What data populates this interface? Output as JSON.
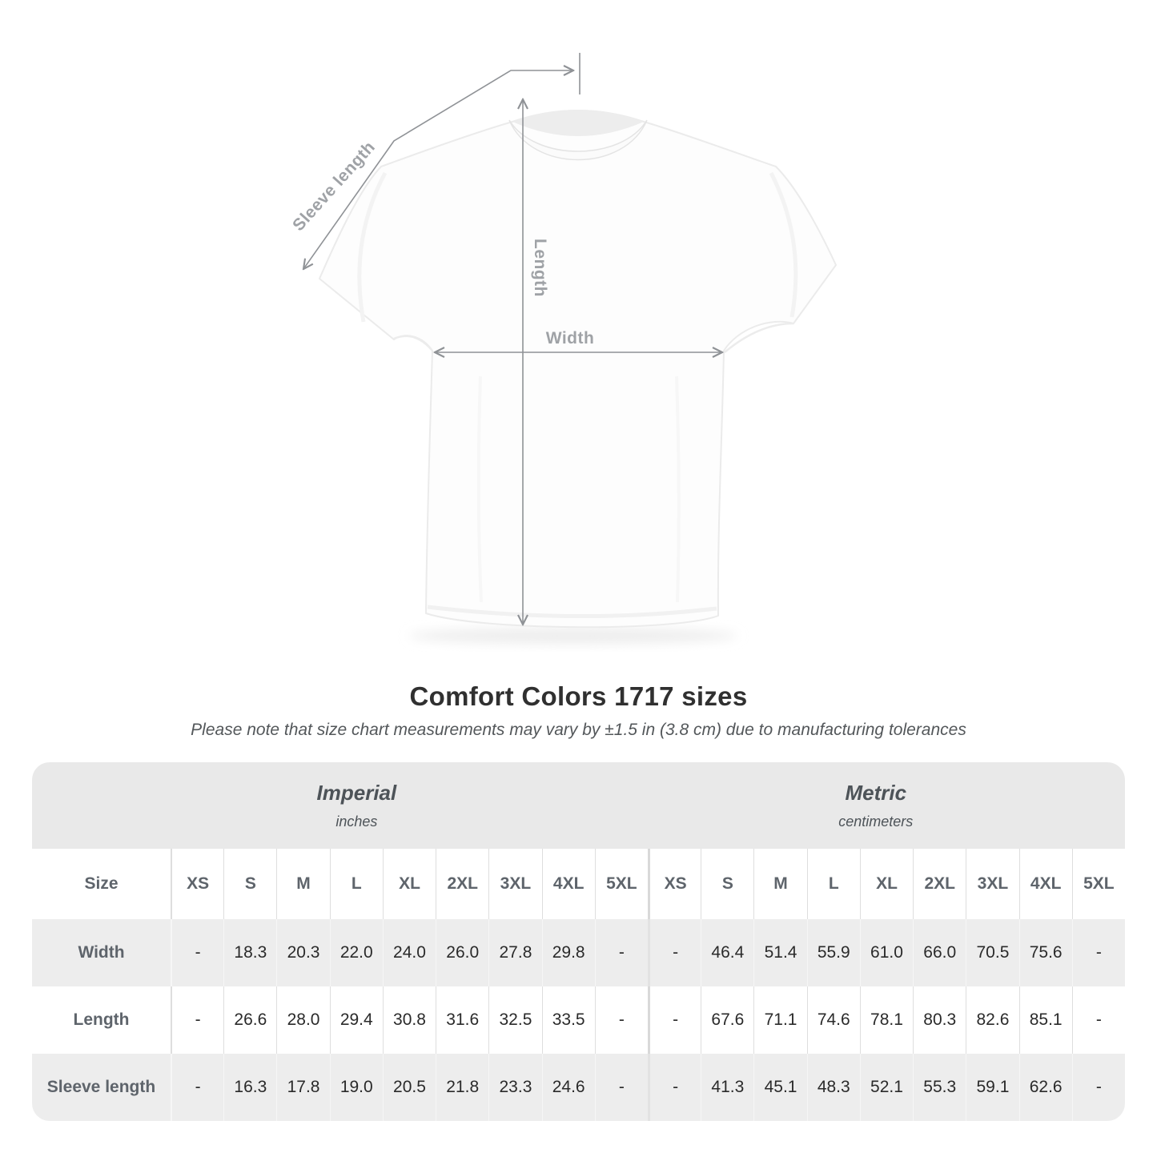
{
  "title": "Comfort Colors 1717 sizes",
  "subtitle": "Please note that size chart measurements may vary by ±1.5 in (3.8 cm) due to manufacturing tolerances",
  "diagram": {
    "sleeve_label": "Sleeve length",
    "length_label": "Length",
    "width_label": "Width"
  },
  "table": {
    "size_header": "Size",
    "unit_groups": [
      {
        "label": "Imperial",
        "sublabel": "inches"
      },
      {
        "label": "Metric",
        "sublabel": "centimeters"
      }
    ],
    "sizes": [
      "XS",
      "S",
      "M",
      "L",
      "XL",
      "2XL",
      "3XL",
      "4XL",
      "5XL"
    ],
    "rows": [
      {
        "label": "Width",
        "imperial": [
          "-",
          "18.3",
          "20.3",
          "22.0",
          "24.0",
          "26.0",
          "27.8",
          "29.8",
          "-"
        ],
        "metric": [
          "-",
          "46.4",
          "51.4",
          "55.9",
          "61.0",
          "66.0",
          "70.5",
          "75.6",
          "-"
        ]
      },
      {
        "label": "Length",
        "imperial": [
          "-",
          "26.6",
          "28.0",
          "29.4",
          "30.8",
          "31.6",
          "32.5",
          "33.5",
          "-"
        ],
        "metric": [
          "-",
          "67.6",
          "71.1",
          "74.6",
          "78.1",
          "80.3",
          "82.6",
          "85.1",
          "-"
        ]
      },
      {
        "label": "Sleeve length",
        "imperial": [
          "-",
          "16.3",
          "17.8",
          "19.0",
          "20.5",
          "21.8",
          "23.3",
          "24.6",
          "-"
        ],
        "metric": [
          "-",
          "41.3",
          "45.1",
          "48.3",
          "52.1",
          "55.3",
          "59.1",
          "62.6",
          "-"
        ]
      }
    ]
  },
  "colors": {
    "header_band": "#e9e9e9",
    "row_shade": "#ededed",
    "divider": "#dedede",
    "value_text": "#2a2a2a",
    "label_text": "#5e646b",
    "measure_line": "#8f9296",
    "measure_label": "#9fa2a6"
  }
}
